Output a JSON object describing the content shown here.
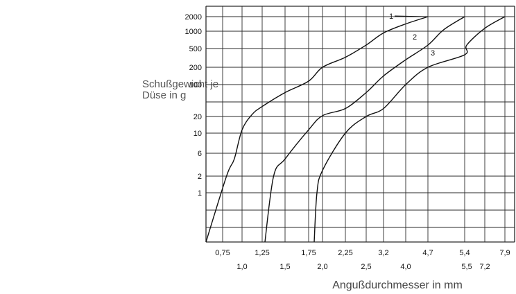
{
  "chart_data": {
    "type": "line",
    "title": "",
    "ylabel_lines": [
      "Schußgewicht je",
      "Düse in g"
    ],
    "xlabel": "Angußdurchmesser in mm",
    "y_ticks": [
      "2000",
      "1000",
      "500",
      "200",
      "100",
      "20",
      "10",
      "6",
      "2",
      "1"
    ],
    "x_ticks_top": [
      "0,75",
      "1,25",
      "1,75",
      "2,25",
      "3,2",
      "4,7",
      "5,4",
      "7,9"
    ],
    "x_ticks_bottom": [
      "1,0",
      "1,5",
      "2,0",
      "2,5",
      "4,0",
      "5,5",
      "7,2"
    ],
    "grid": true,
    "series": [
      {
        "name": "1",
        "points": [
          [
            0.72,
            0.5
          ],
          [
            0.8,
            2
          ],
          [
            0.9,
            5
          ],
          [
            1.0,
            12
          ],
          [
            1.125,
            25
          ],
          [
            1.25,
            45
          ],
          [
            1.5,
            80
          ],
          [
            1.75,
            120
          ],
          [
            2.0,
            200
          ],
          [
            2.25,
            360
          ],
          [
            2.5,
            600
          ],
          [
            3.2,
            950
          ],
          [
            4.0,
            1500
          ],
          [
            4.7,
            2000
          ]
        ]
      },
      {
        "name": "2",
        "points": [
          [
            1.28,
            0.5
          ],
          [
            1.375,
            2
          ],
          [
            1.5,
            5
          ],
          [
            1.75,
            12
          ],
          [
            2.0,
            22
          ],
          [
            2.25,
            40
          ],
          [
            2.5,
            80
          ],
          [
            3.2,
            150
          ],
          [
            4.0,
            320
          ],
          [
            4.7,
            600
          ],
          [
            5.0,
            1100
          ],
          [
            5.4,
            2000
          ]
        ]
      },
      {
        "name": "3",
        "points": [
          [
            1.85,
            0.5
          ],
          [
            1.9,
            1
          ],
          [
            2.0,
            3
          ],
          [
            2.25,
            10
          ],
          [
            2.5,
            20
          ],
          [
            3.2,
            40
          ],
          [
            4.0,
            100
          ],
          [
            4.7,
            200
          ],
          [
            5.4,
            400
          ],
          [
            5.5,
            600
          ],
          [
            7.2,
            1200
          ],
          [
            7.9,
            2000
          ]
        ]
      }
    ]
  }
}
